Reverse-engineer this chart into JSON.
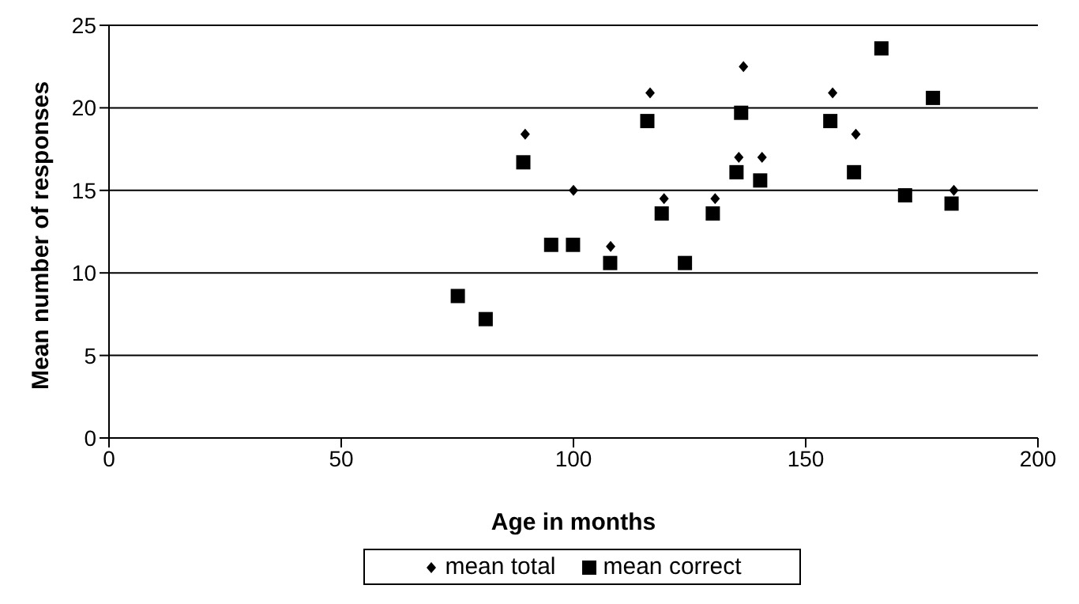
{
  "chart_data": {
    "type": "scatter",
    "xlabel": "Age in months",
    "ylabel": "Mean number of responses",
    "xlim": [
      0,
      200
    ],
    "xticks": [
      0,
      50,
      100,
      150,
      200
    ],
    "ylim": [
      0,
      25
    ],
    "yticks": [
      0,
      5,
      10,
      15,
      20,
      25
    ],
    "grid": "y",
    "legend": "bottom",
    "series": [
      {
        "name": "mean total",
        "color": "#000000",
        "marker": "diamond",
        "x": [
          89.6,
          100,
          108,
          116.5,
          119.5,
          130.5,
          135.6,
          136.6,
          140.6,
          155.8,
          160.8,
          181.9
        ],
        "values": [
          18.4,
          15,
          11.6,
          20.9,
          14.5,
          14.5,
          17,
          22.5,
          17,
          20.9,
          18.4,
          15
        ]
      },
      {
        "name": "mean correct",
        "color": "#000000",
        "marker": "square",
        "x": [
          75.1,
          81.1,
          89.2,
          95.2,
          99.9,
          107.9,
          115.9,
          119,
          124,
          130,
          135.1,
          136.1,
          140.2,
          155.3,
          160.4,
          166.3,
          171.4,
          177.4,
          181.4
        ],
        "values": [
          8.6,
          7.2,
          16.7,
          11.7,
          11.7,
          10.6,
          19.2,
          13.6,
          10.6,
          13.6,
          16.1,
          19.7,
          15.6,
          19.2,
          16.1,
          23.6,
          14.7,
          20.6,
          14.2
        ]
      }
    ]
  }
}
